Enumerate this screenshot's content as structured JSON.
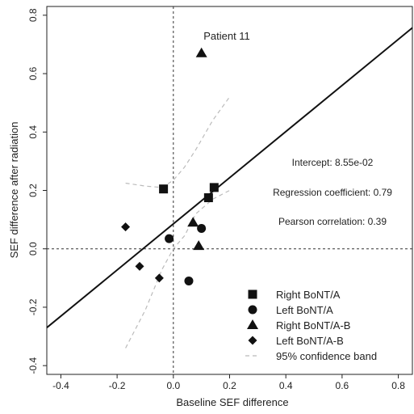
{
  "chart_data": {
    "type": "scatter",
    "xlabel": "Baseline SEF difference",
    "ylabel": "SEF difference after radiation",
    "xlim": [
      -0.45,
      0.85
    ],
    "ylim": [
      -0.43,
      0.83
    ],
    "xticks": [
      -0.4,
      -0.2,
      0.0,
      0.2,
      0.4,
      0.6,
      0.8
    ],
    "xtick_labels": [
      "-0.4",
      "-0.2",
      "0.0",
      "0.2",
      "0.4",
      "0.6",
      "0.8"
    ],
    "yticks": [
      -0.4,
      -0.2,
      0.0,
      0.2,
      0.4,
      0.6,
      0.8
    ],
    "ytick_labels": [
      "-0.4",
      "-0.2",
      "0.0",
      "0.2",
      "0.4",
      "0.6",
      "0.8"
    ],
    "grid": false,
    "legend_position": "bottom-right",
    "reference_lines": {
      "x": 0,
      "y": 0
    },
    "series": [
      {
        "name": "Right BoNT/A",
        "marker": "square",
        "points": [
          [
            -0.035,
            0.205
          ],
          [
            0.125,
            0.175
          ],
          [
            0.145,
            0.21
          ]
        ]
      },
      {
        "name": "Left BoNT/A",
        "marker": "circle",
        "points": [
          [
            -0.015,
            0.035
          ],
          [
            0.1,
            0.07
          ],
          [
            0.055,
            -0.11
          ]
        ]
      },
      {
        "name": "Right BoNT/A-B",
        "marker": "triangle",
        "points": [
          [
            0.1,
            0.67
          ],
          [
            0.07,
            0.09
          ],
          [
            0.09,
            0.01
          ]
        ]
      },
      {
        "name": "Left BoNT/A-B",
        "marker": "diamond",
        "points": [
          [
            -0.17,
            0.075
          ],
          [
            -0.12,
            -0.06
          ],
          [
            -0.05,
            -0.1
          ]
        ]
      }
    ],
    "regression": {
      "intercept": 0.0855,
      "slope": 0.79
    },
    "confidence_band": {
      "name": "95% confidence band",
      "upper": [
        [
          -0.17,
          0.225
        ],
        [
          -0.1,
          0.215
        ],
        [
          -0.04,
          0.21
        ],
        [
          0.0,
          0.235
        ],
        [
          0.04,
          0.28
        ],
        [
          0.08,
          0.34
        ],
        [
          0.14,
          0.44
        ],
        [
          0.2,
          0.52
        ]
      ],
      "lower": [
        [
          -0.17,
          -0.34
        ],
        [
          -0.1,
          -0.21
        ],
        [
          -0.04,
          -0.07
        ],
        [
          0.0,
          0.0
        ],
        [
          0.04,
          0.045
        ],
        [
          0.08,
          0.12
        ],
        [
          0.14,
          0.17
        ],
        [
          0.2,
          0.2
        ]
      ]
    },
    "annotations": {
      "patient": "Patient 11",
      "intercept": "Intercept: 8.55e-02",
      "regression_coefficient": "Regression coefficient: 0.79",
      "pearson_correlation": "Pearson correlation: 0.39"
    },
    "legend": {
      "items": [
        "Right BoNT/A",
        "Left BoNT/A",
        "Right BoNT/A-B",
        "Left BoNT/A-B",
        "95% confidence band"
      ]
    }
  }
}
